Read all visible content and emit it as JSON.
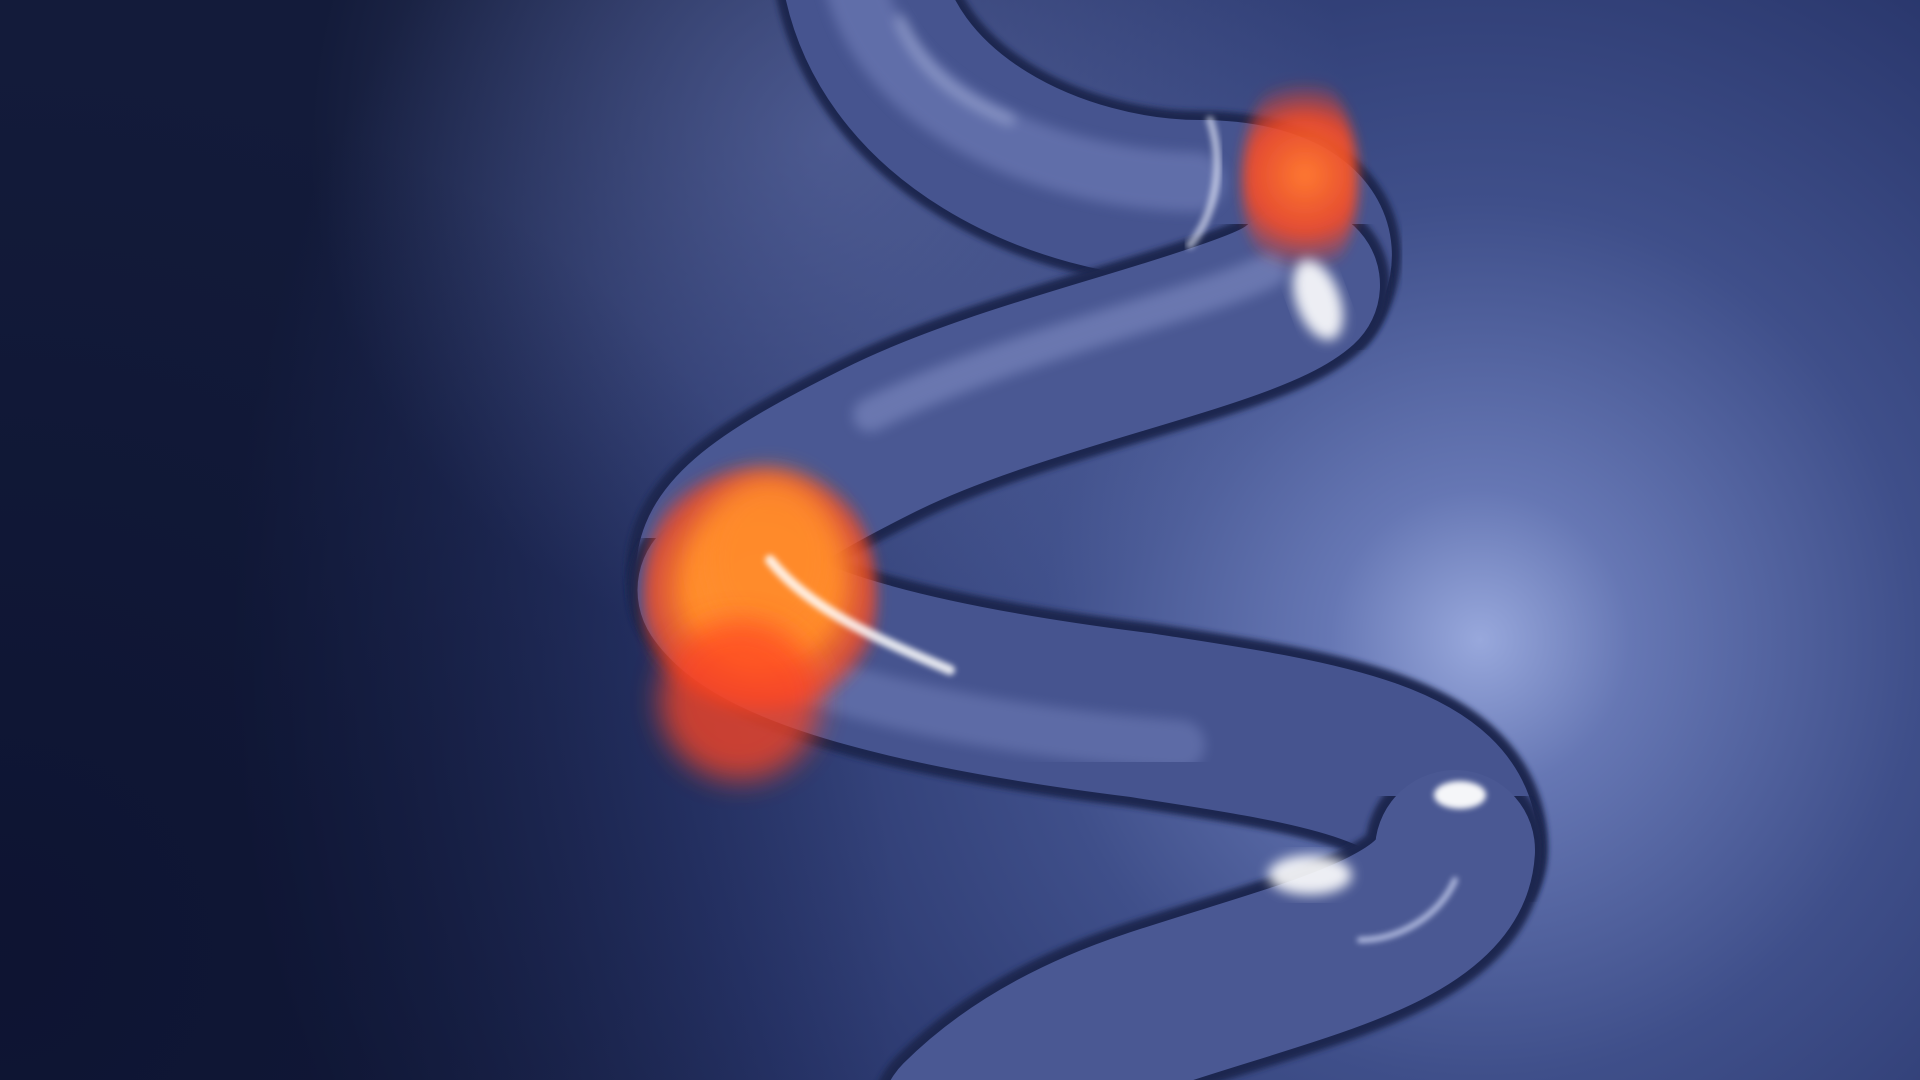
{
  "scene": {
    "subject": "glass-helix-tube",
    "palette": {
      "background_dark": "#121a38",
      "background_mid": "#2c3a70",
      "background_light": "#8f9fd4",
      "tube_shadow": "#1c2650",
      "tube_body": "#46548f",
      "tube_highlight": "#cdd6f2",
      "specular": "#ffffff",
      "glow_hot": "#ff8a2a",
      "glow_red": "#ff3a1e",
      "glow_amber": "#ffa040"
    }
  }
}
